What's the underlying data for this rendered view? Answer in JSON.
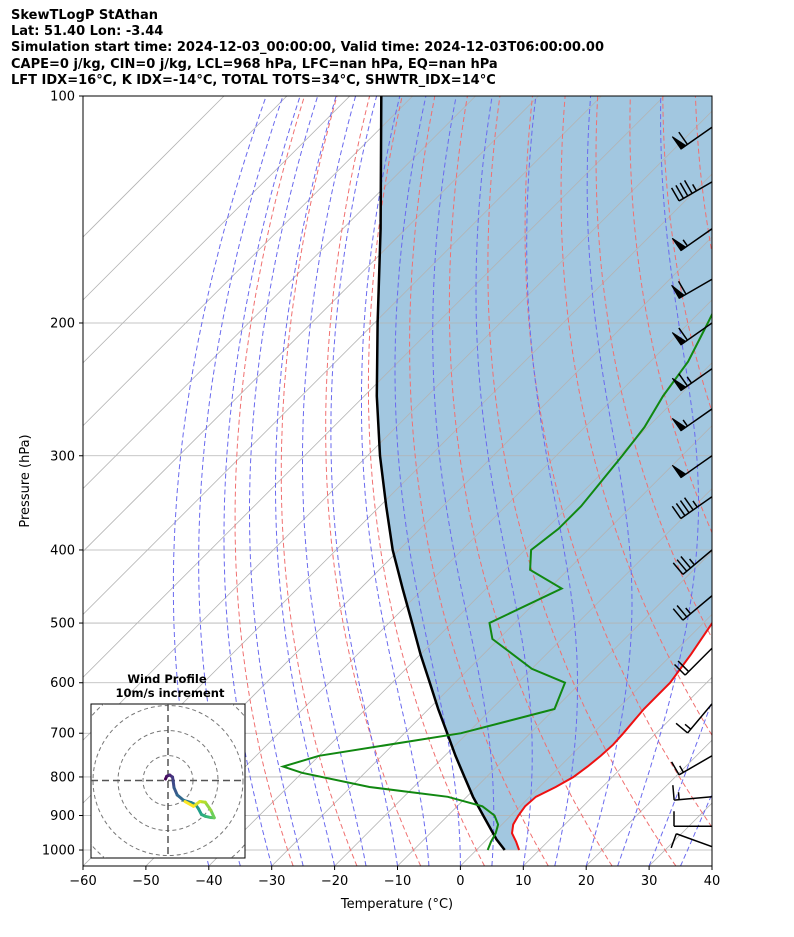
{
  "header": {
    "line1": "SkewTLogP StAthan",
    "line2": "Lat: 51.40   Lon: -3.44",
    "line3": "Simulation start time: 2024-12-03_00:00:00, Valid time: 2024-12-03T06:00:00.00",
    "line4": "CAPE=0 j/kg, CIN=0 j/kg, LCL=968 hPa, LFC=nan hPa, EQ=nan hPa",
    "line5": "LFT IDX=16°C, K IDX=-14°C, TOTAL TOTS=34°C, SHWTR_IDX=14°C"
  },
  "chart_data": {
    "type": "skew-t log-p",
    "xlabel": "Temperature (°C)",
    "ylabel": "Pressure (hPa)",
    "xlim": [
      -60,
      40
    ],
    "ylim": [
      1050,
      100
    ],
    "x_ticks": [
      "−60",
      "−50",
      "−40",
      "−30",
      "−20",
      "−10",
      "0",
      "10",
      "20",
      "30",
      "40"
    ],
    "y_ticks": [
      100,
      200,
      300,
      400,
      500,
      600,
      700,
      800,
      900,
      1000
    ],
    "colors": {
      "temperature": "#ee1111",
      "dewpoint": "#118811",
      "parcel": "#000000",
      "shade": "#a2c7e0",
      "dry_adiabat": "#f07070",
      "moist_adiabat": "#6a6aee",
      "isotherm": "#b3b3b3"
    },
    "temperature": [
      [
        1000,
        6.8
      ],
      [
        975,
        5.0
      ],
      [
        950,
        3.0
      ],
      [
        925,
        1.8
      ],
      [
        900,
        1.2
      ],
      [
        875,
        0.8
      ],
      [
        850,
        1.0
      ],
      [
        825,
        2.6
      ],
      [
        800,
        3.8
      ],
      [
        775,
        4.4
      ],
      [
        750,
        4.8
      ],
      [
        725,
        5.0
      ],
      [
        700,
        4.8
      ],
      [
        650,
        4.2
      ],
      [
        600,
        4.2
      ],
      [
        550,
        3.0
      ],
      [
        500,
        1.4
      ],
      [
        450,
        -0.6
      ],
      [
        400,
        -2.8
      ],
      [
        350,
        -4.0
      ],
      [
        300,
        -6.8
      ],
      [
        250,
        -6.0
      ],
      [
        225,
        -4.6
      ],
      [
        200,
        -2.4
      ],
      [
        175,
        0.6
      ],
      [
        150,
        5.2
      ],
      [
        125,
        10.0
      ],
      [
        100,
        16.0
      ]
    ],
    "dewpoint": [
      [
        1000,
        1.8
      ],
      [
        975,
        1.0
      ],
      [
        950,
        0.4
      ],
      [
        925,
        -0.6
      ],
      [
        900,
        -2.6
      ],
      [
        875,
        -6.0
      ],
      [
        850,
        -13.0
      ],
      [
        825,
        -27.0
      ],
      [
        790,
        -40.0
      ],
      [
        775,
        -44.0
      ],
      [
        750,
        -40.0
      ],
      [
        700,
        -21.0
      ],
      [
        650,
        -10.0
      ],
      [
        600,
        -12.5
      ],
      [
        575,
        -20.0
      ],
      [
        525,
        -31.0
      ],
      [
        500,
        -34.0
      ],
      [
        450,
        -28.0
      ],
      [
        425,
        -36.0
      ],
      [
        400,
        -39.0
      ],
      [
        375,
        -38.0
      ],
      [
        350,
        -38.0
      ],
      [
        300,
        -39.5
      ],
      [
        275,
        -40.5
      ],
      [
        250,
        -42.5
      ],
      [
        225,
        -44.0
      ],
      [
        200,
        -47.0
      ],
      [
        175,
        -50.5
      ],
      [
        160,
        -54.0
      ],
      [
        150,
        -56.0
      ],
      [
        130,
        -60.0
      ],
      [
        115,
        -66.0
      ],
      [
        100,
        -73.0
      ]
    ],
    "parcel_profile": [
      [
        1000,
        4.5
      ],
      [
        968,
        1.5
      ],
      [
        900,
        -4.4
      ],
      [
        850,
        -9.0
      ],
      [
        800,
        -13.5
      ],
      [
        750,
        -18.3
      ],
      [
        700,
        -23.2
      ],
      [
        650,
        -28.5
      ],
      [
        600,
        -34.0
      ],
      [
        550,
        -40.0
      ],
      [
        500,
        -46.3
      ],
      [
        450,
        -53.3
      ],
      [
        400,
        -61.0
      ],
      [
        350,
        -69.0
      ],
      [
        300,
        -78.0
      ],
      [
        250,
        -88.0
      ],
      [
        200,
        -99.5
      ],
      [
        150,
        -114.0
      ],
      [
        100,
        -135.0
      ]
    ],
    "wind_barbs": [
      {
        "p": 110,
        "speed_kt": 60,
        "dir_deg": 235
      },
      {
        "p": 130,
        "speed_kt": 45,
        "dir_deg": 240
      },
      {
        "p": 150,
        "speed_kt": 55,
        "dir_deg": 235
      },
      {
        "p": 175,
        "speed_kt": 60,
        "dir_deg": 240
      },
      {
        "p": 200,
        "speed_kt": 60,
        "dir_deg": 235
      },
      {
        "p": 230,
        "speed_kt": 65,
        "dir_deg": 235
      },
      {
        "p": 260,
        "speed_kt": 55,
        "dir_deg": 235
      },
      {
        "p": 300,
        "speed_kt": 50,
        "dir_deg": 235
      },
      {
        "p": 340,
        "speed_kt": 45,
        "dir_deg": 235
      },
      {
        "p": 400,
        "speed_kt": 35,
        "dir_deg": 230
      },
      {
        "p": 460,
        "speed_kt": 25,
        "dir_deg": 230
      },
      {
        "p": 540,
        "speed_kt": 20,
        "dir_deg": 225
      },
      {
        "p": 640,
        "speed_kt": 15,
        "dir_deg": 220
      },
      {
        "p": 750,
        "speed_kt": 15,
        "dir_deg": 240
      },
      {
        "p": 850,
        "speed_kt": 15,
        "dir_deg": 265
      },
      {
        "p": 930,
        "speed_kt": 12,
        "dir_deg": 270
      },
      {
        "p": 990,
        "speed_kt": 8,
        "dir_deg": 290
      }
    ],
    "hodograph": {
      "title": "Wind Profile",
      "subtitle": "10m/s increment",
      "ring_step_ms": 10,
      "points": [
        [
          -1.0,
          0.6
        ],
        [
          -0.5,
          1.7
        ],
        [
          0.7,
          2.2
        ],
        [
          1.8,
          1.4
        ],
        [
          2.1,
          -0.4
        ],
        [
          2.4,
          -2.8
        ],
        [
          3.7,
          -5.8
        ],
        [
          6.2,
          -7.9
        ],
        [
          9.2,
          -8.8
        ],
        [
          11.1,
          -9.7
        ],
        [
          12.2,
          -11.3
        ],
        [
          13.4,
          -13.6
        ],
        [
          14.9,
          -14.3
        ],
        [
          17.1,
          -14.8
        ],
        [
          18.5,
          -14.9
        ],
        [
          17.2,
          -12.0
        ],
        [
          14.9,
          -8.7
        ],
        [
          12.7,
          -8.4
        ],
        [
          10.2,
          -10.3
        ],
        [
          6.8,
          -8.4
        ]
      ]
    }
  }
}
